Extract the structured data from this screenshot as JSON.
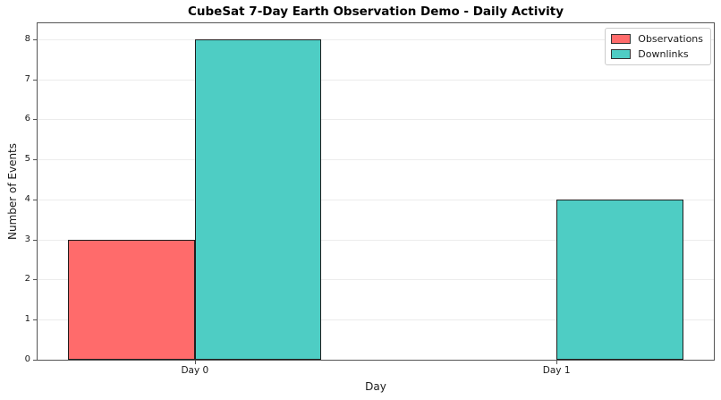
{
  "title": "CubeSat 7-Day Earth Observation Demo - Daily Activity",
  "chart_data": {
    "type": "bar",
    "title": "CubeSat 7-Day Earth Observation Demo - Daily Activity",
    "xlabel": "Day",
    "ylabel": "Number of Events",
    "categories": [
      "Day 0",
      "Day 1"
    ],
    "series": [
      {
        "name": "Observations",
        "color": "#FF6B6B",
        "values": [
          3,
          0
        ]
      },
      {
        "name": "Downlinks",
        "color": "#4ECDC4",
        "values": [
          8,
          4
        ]
      }
    ],
    "bar_width": 0.35,
    "xlim": [
      -0.435,
      1.435
    ],
    "ylim": [
      0,
      8.4
    ],
    "yticks": [
      0,
      1,
      2,
      3,
      4,
      5,
      6,
      7,
      8
    ],
    "grid": "horizontal",
    "grid_color": "#ececec",
    "bar_edge_color": "#1f1f1f",
    "spine_color": "#555555",
    "legend_position": "upper right"
  }
}
